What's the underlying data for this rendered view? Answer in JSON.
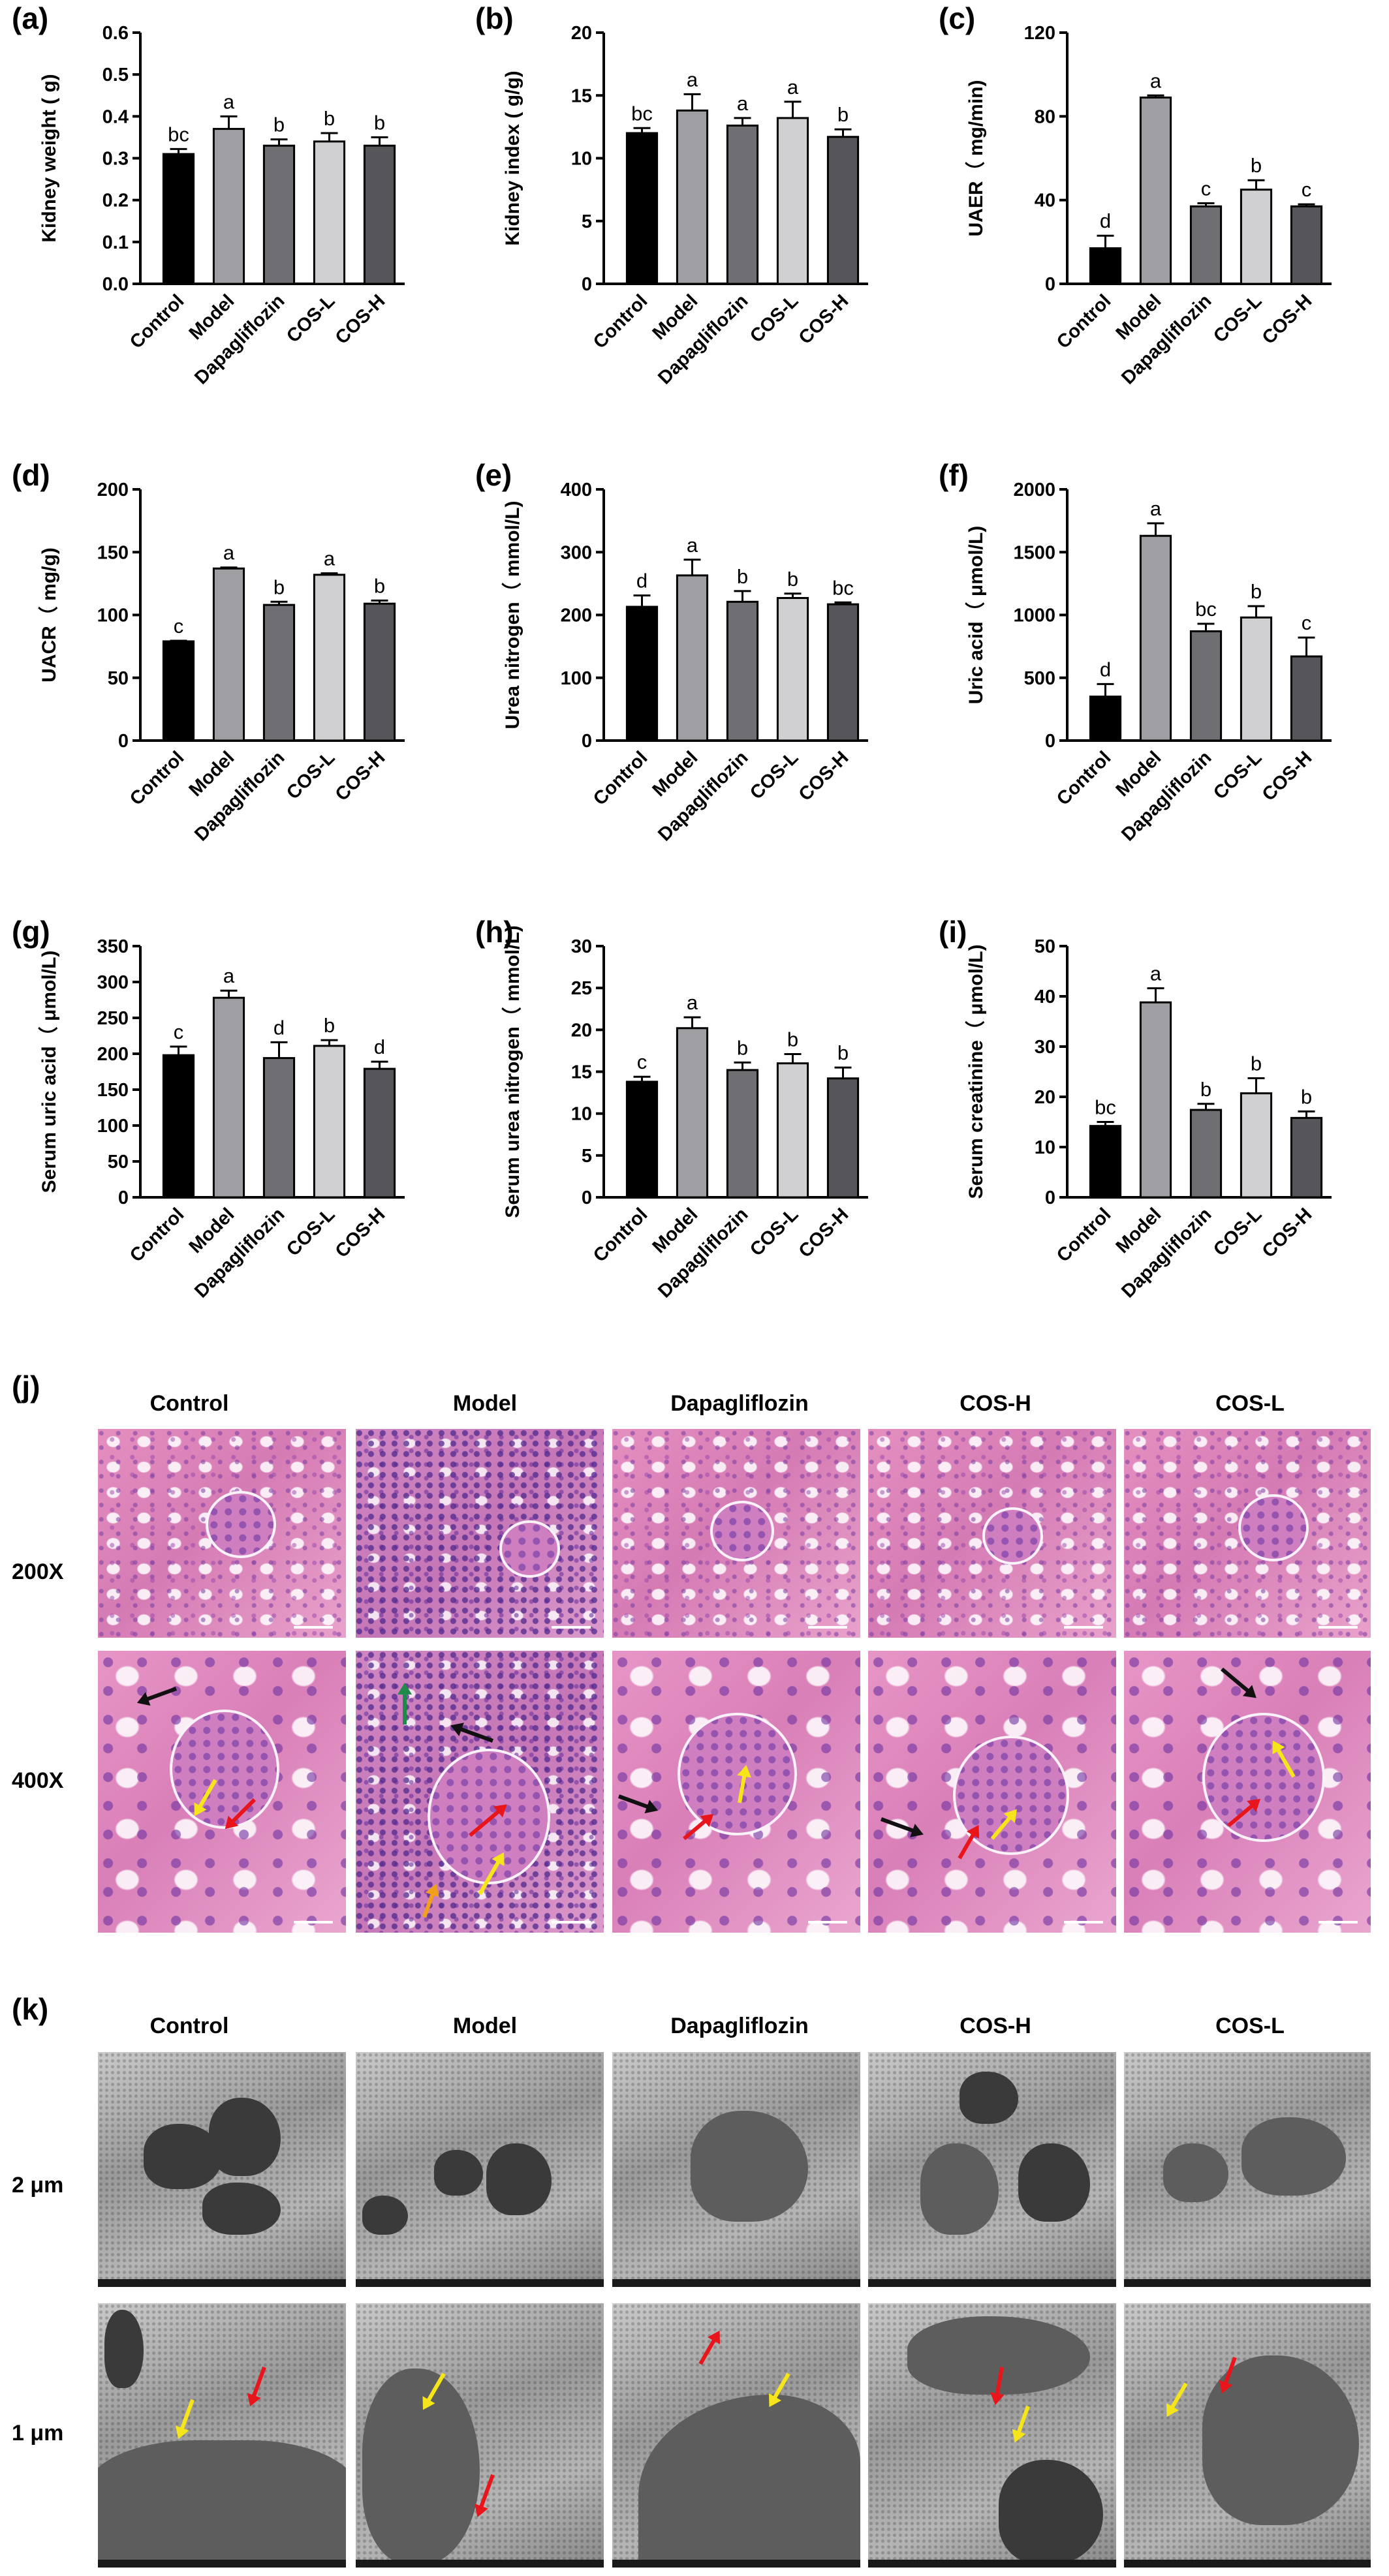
{
  "chart_data": [
    {
      "letter": "(a)",
      "type": "bar",
      "ylabel": "Kidney weight ( g)",
      "categories": [
        "Control",
        "Model",
        "Dapagliflozin",
        "COS-L",
        "COS-H"
      ],
      "values": [
        0.31,
        0.37,
        0.33,
        0.34,
        0.33
      ],
      "errors": [
        0.012,
        0.03,
        0.015,
        0.02,
        0.02
      ],
      "sig": [
        "bc",
        "a",
        "b",
        "b",
        "b"
      ],
      "ylim": [
        0,
        0.6
      ],
      "yticks": [
        "0.0",
        "0.1",
        "0.2",
        "0.3",
        "0.4",
        "0.5",
        "0.6"
      ],
      "tickvals": [
        0,
        0.1,
        0.2,
        0.3,
        0.4,
        0.5,
        0.6
      ]
    },
    {
      "letter": "(b)",
      "type": "bar",
      "ylabel": "Kidney index ( g/g)",
      "categories": [
        "Control",
        "Model",
        "Dapagliflozin",
        "COS-L",
        "COS-H"
      ],
      "values": [
        12.0,
        13.8,
        12.6,
        13.2,
        11.7
      ],
      "errors": [
        0.4,
        1.3,
        0.6,
        1.3,
        0.6
      ],
      "sig": [
        "bc",
        "a",
        "a",
        "a",
        "b"
      ],
      "ylim": [
        0,
        20
      ],
      "yticks": [
        "0",
        "5",
        "10",
        "15",
        "20"
      ],
      "tickvals": [
        0,
        5,
        10,
        15,
        20
      ]
    },
    {
      "letter": "(c)",
      "type": "bar",
      "ylabel": "UAER（ mg/min)",
      "categories": [
        "Control",
        "Model",
        "Dapagliflozin",
        "COS-L",
        "COS-H"
      ],
      "values": [
        17,
        89,
        37,
        45,
        37
      ],
      "errors": [
        6,
        1,
        1.5,
        4.5,
        1
      ],
      "sig": [
        "d",
        "a",
        "c",
        "b",
        "c"
      ],
      "ylim": [
        0,
        120
      ],
      "yticks": [
        "0",
        "40",
        "80",
        "120"
      ],
      "tickvals": [
        0,
        40,
        80,
        120
      ]
    },
    {
      "letter": "(d)",
      "type": "bar",
      "ylabel": "UACR（ mg/g)",
      "categories": [
        "Control",
        "Model",
        "Dapagliflozin",
        "COS-L",
        "COS-H"
      ],
      "values": [
        79,
        137,
        108,
        132,
        109
      ],
      "errors": [
        0.5,
        0.8,
        2.5,
        1.2,
        2.5
      ],
      "sig": [
        "c",
        "a",
        "b",
        "a",
        "b"
      ],
      "ylim": [
        0,
        200
      ],
      "yticks": [
        "0",
        "50",
        "100",
        "150",
        "200"
      ],
      "tickvals": [
        0,
        50,
        100,
        150,
        200
      ]
    },
    {
      "letter": "(e)",
      "type": "bar",
      "ylabel": "Urea nitrogen（ mmol/L)",
      "categories": [
        "Control",
        "Model",
        "Dapagliflozin",
        "COS-L",
        "COS-H"
      ],
      "values": [
        213,
        263,
        221,
        227,
        217
      ],
      "errors": [
        18,
        25,
        17,
        7,
        3
      ],
      "sig": [
        "d",
        "a",
        "b",
        "b",
        "bc"
      ],
      "ylim": [
        0,
        400
      ],
      "yticks": [
        "0",
        "100",
        "200",
        "300",
        "400"
      ],
      "tickvals": [
        0,
        100,
        200,
        300,
        400
      ]
    },
    {
      "letter": "(f)",
      "type": "bar",
      "ylabel": "Uric acid（ μmol/L)",
      "categories": [
        "Control",
        "Model",
        "Dapagliflozin",
        "COS-L",
        "COS-H"
      ],
      "values": [
        350,
        1630,
        870,
        980,
        670
      ],
      "errors": [
        100,
        100,
        60,
        90,
        150
      ],
      "sig": [
        "d",
        "a",
        "bc",
        "b",
        "c"
      ],
      "ylim": [
        0,
        2000
      ],
      "yticks": [
        "0",
        "500",
        "1000",
        "1500",
        "2000"
      ],
      "tickvals": [
        0,
        500,
        1000,
        1500,
        2000
      ]
    },
    {
      "letter": "(g)",
      "type": "bar",
      "ylabel": "Serum uric acid（ μmol/L)",
      "categories": [
        "Control",
        "Model",
        "Dapagliflozin",
        "COS-L",
        "COS-H"
      ],
      "values": [
        198,
        278,
        194,
        211,
        179
      ],
      "errors": [
        12,
        10,
        22,
        8,
        10
      ],
      "sig": [
        "c",
        "a",
        "d",
        "b",
        "d"
      ],
      "ylim": [
        0,
        350
      ],
      "yticks": [
        "0",
        "50",
        "100",
        "150",
        "200",
        "250",
        "300",
        "350"
      ],
      "tickvals": [
        0,
        50,
        100,
        150,
        200,
        250,
        300,
        350
      ]
    },
    {
      "letter": "(h)",
      "type": "bar",
      "ylabel": "Serum urea nitrogen（ mmol/L)",
      "categories": [
        "Control",
        "Model",
        "Dapagliflozin",
        "COS-L",
        "COS-H"
      ],
      "values": [
        13.8,
        20.2,
        15.2,
        16.0,
        14.2
      ],
      "errors": [
        0.6,
        1.3,
        0.9,
        1.1,
        1.3
      ],
      "sig": [
        "c",
        "a",
        "b",
        "b",
        "b"
      ],
      "ylim": [
        0,
        30
      ],
      "yticks": [
        "0",
        "5",
        "10",
        "15",
        "20",
        "25",
        "30"
      ],
      "tickvals": [
        0,
        5,
        10,
        15,
        20,
        25,
        30
      ]
    },
    {
      "letter": "(i)",
      "type": "bar",
      "ylabel": "Serum creatinine（ μmol/L)",
      "categories": [
        "Control",
        "Model",
        "Dapagliflozin",
        "COS-L",
        "COS-H"
      ],
      "values": [
        14.2,
        38.8,
        17.4,
        20.7,
        15.8
      ],
      "errors": [
        0.8,
        2.8,
        1.2,
        3,
        1.3
      ],
      "sig": [
        "bc",
        "a",
        "b",
        "b",
        "b"
      ],
      "ylim": [
        0,
        50
      ],
      "yticks": [
        "0",
        "10",
        "20",
        "30",
        "40",
        "50"
      ],
      "tickvals": [
        0,
        10,
        20,
        30,
        40,
        50
      ]
    }
  ],
  "bar_colors": [
    "#000000",
    "#9e9ea3",
    "#6e6e73",
    "#d0d0d2",
    "#56565a"
  ],
  "panel_j": {
    "letter": "(j)",
    "columns": [
      "Control",
      "Model",
      "Dapagliflozin",
      "COS-H",
      "COS-L"
    ],
    "rows": [
      "200X",
      "400X"
    ]
  },
  "panel_k": {
    "letter": "(k)",
    "columns": [
      "Control",
      "Model",
      "Dapagliflozin",
      "COS-H",
      "COS-L"
    ],
    "rows": [
      "2 μm",
      "1 μm"
    ]
  },
  "arrow_colors": {
    "red": "#e8151b",
    "yellow": "#f6e51b",
    "black": "#111111",
    "green": "#1f8a4a",
    "orange": "#f2a01c"
  }
}
